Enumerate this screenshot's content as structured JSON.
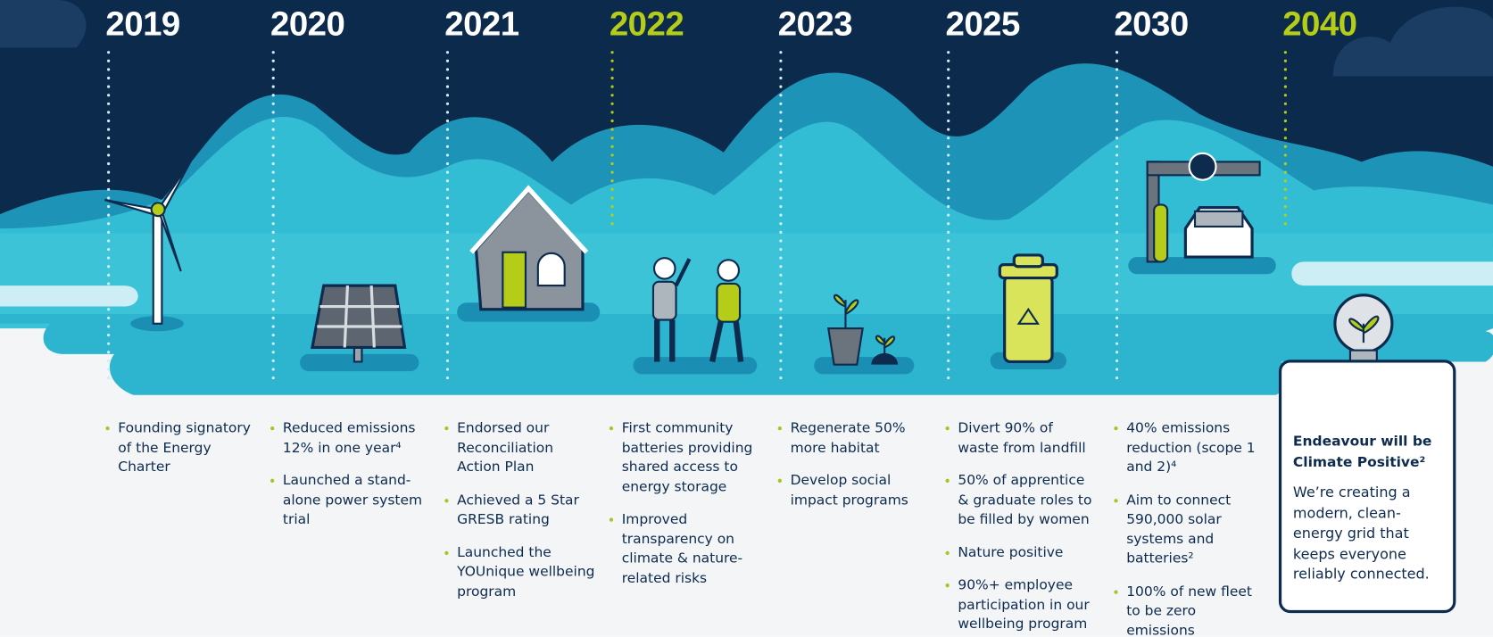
{
  "columns": [
    {
      "year": "2019",
      "year_color": "#ffffff",
      "items": [
        "Founding signatory of the Energy Charter"
      ]
    },
    {
      "year": "2020",
      "year_color": "#ffffff",
      "items": [
        "Reduced emissions 12% in one year⁴",
        "Launched a stand-alone power system trial"
      ]
    },
    {
      "year": "2021",
      "year_color": "#ffffff",
      "items": [
        "Endorsed our Reconciliation Action Plan",
        "Achieved a 5 Star GRESB rating",
        "Launched the YOUnique wellbeing program"
      ]
    },
    {
      "year": "2022",
      "year_color": "#b5cc18",
      "items": [
        "First community batteries providing shared access to energy storage",
        "Improved transparency on climate & nature-related risks"
      ]
    },
    {
      "year": "2023",
      "year_color": "#ffffff",
      "items": [
        "Regenerate 50% more habitat",
        "Develop social impact programs"
      ]
    },
    {
      "year": "2025",
      "year_color": "#ffffff",
      "items": [
        "Divert 90% of waste from landfill",
        "50% of apprentice & graduate roles to be filled by women",
        "Nature positive",
        "90%+ employee participation in our wellbeing program"
      ]
    },
    {
      "year": "2030",
      "year_color": "#ffffff",
      "items": [
        "40% emissions reduction (scope 1 and 2)⁴",
        "Aim to connect 590,000 solar systems and batteries²",
        "100% of new fleet to be zero emissions"
      ]
    },
    {
      "year": "2040",
      "year_color": "#b5cc18",
      "items": []
    }
  ],
  "card": {
    "title": "Endeavour will be Climate Positive²",
    "text": "We’re creating a modern, clean-energy grid that keeps everyone reliably connected."
  }
}
